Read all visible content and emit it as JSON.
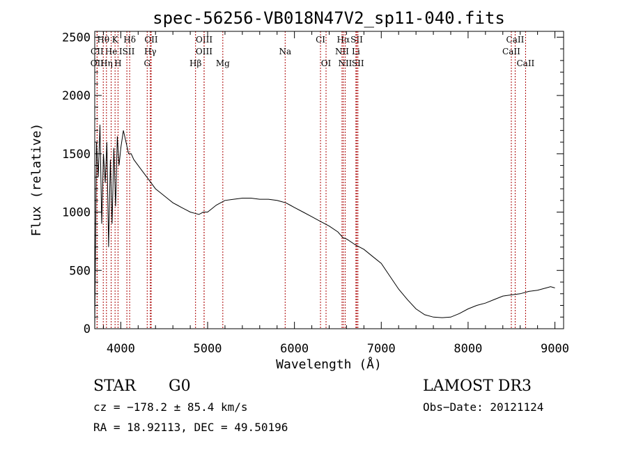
{
  "chart_data": {
    "type": "line",
    "title": "spec-56256-VB018N47V2_sp11-040.fits",
    "xlabel": "Wavelength (Å)",
    "ylabel": "Flux (relative)",
    "xlim": [
      3700,
      9100
    ],
    "ylim": [
      0,
      2550
    ],
    "xticks": [
      4000,
      5000,
      6000,
      7000,
      8000,
      9000
    ],
    "xtick_labels": [
      "4000",
      "5000",
      "6000",
      "7000",
      "8000",
      "9000"
    ],
    "yticks": [
      0,
      500,
      1000,
      1500,
      2000,
      2500
    ],
    "ytick_labels": [
      "0",
      "500",
      "1000",
      "1500",
      "2000",
      "2500"
    ],
    "line_color": "#000000",
    "marker_color": "#aa0000",
    "series": [
      {
        "name": "flux",
        "x": [
          3700,
          3720,
          3740,
          3760,
          3780,
          3800,
          3820,
          3840,
          3860,
          3880,
          3900,
          3920,
          3940,
          3960,
          3980,
          4000,
          4030,
          4060,
          4090,
          4120,
          4150,
          4200,
          4250,
          4300,
          4350,
          4400,
          4450,
          4500,
          4550,
          4600,
          4650,
          4700,
          4750,
          4800,
          4850,
          4900,
          4950,
          5000,
          5050,
          5100,
          5150,
          5200,
          5300,
          5400,
          5500,
          5600,
          5700,
          5800,
          5850,
          5900,
          5950,
          6000,
          6100,
          6200,
          6300,
          6400,
          6500,
          6560,
          6600,
          6700,
          6800,
          6900,
          7000,
          7100,
          7200,
          7300,
          7400,
          7500,
          7600,
          7700,
          7800,
          7900,
          8000,
          8100,
          8200,
          8300,
          8400,
          8500,
          8600,
          8700,
          8800,
          8900,
          8950,
          9000
        ],
        "y": [
          0,
          1600,
          1300,
          1750,
          900,
          1500,
          1250,
          1600,
          700,
          1450,
          900,
          1550,
          1050,
          1650,
          1400,
          1550,
          1700,
          1600,
          1500,
          1500,
          1450,
          1400,
          1350,
          1300,
          1250,
          1200,
          1170,
          1140,
          1110,
          1080,
          1060,
          1040,
          1020,
          1000,
          990,
          980,
          1000,
          1000,
          1030,
          1060,
          1080,
          1100,
          1110,
          1120,
          1120,
          1110,
          1110,
          1100,
          1090,
          1080,
          1060,
          1040,
          1000,
          960,
          920,
          880,
          830,
          780,
          770,
          720,
          680,
          620,
          560,
          450,
          340,
          250,
          170,
          120,
          100,
          95,
          100,
          130,
          170,
          200,
          220,
          250,
          280,
          290,
          300,
          320,
          330,
          350,
          360,
          350
        ]
      }
    ],
    "line_markers": [
      {
        "label": "Hθ",
        "x": 3798,
        "row": 1
      },
      {
        "label": "K",
        "x": 3934,
        "row": 1
      },
      {
        "label": "Hδ",
        "x": 4102,
        "row": 1
      },
      {
        "label": "OII",
        "x": 4350,
        "row": 1
      },
      {
        "label": "OIII",
        "x": 4960,
        "row": 1
      },
      {
        "label": "CI",
        "x": 6300,
        "row": 1
      },
      {
        "label": "Hα",
        "x": 6563,
        "row": 1
      },
      {
        "label": "SII",
        "x": 6717,
        "row": 1
      },
      {
        "label": "CaII",
        "x": 8542,
        "row": 1
      },
      {
        "label": "CII",
        "x": 3727,
        "row": 2
      },
      {
        "label": "He",
        "x": 3889,
        "row": 2
      },
      {
        "label": "ISII",
        "x": 4070,
        "row": 2
      },
      {
        "label": "Hγ",
        "x": 4340,
        "row": 2
      },
      {
        "label": "OIII",
        "x": 4959,
        "row": 2
      },
      {
        "label": "Na",
        "x": 5893,
        "row": 2
      },
      {
        "label": "NII",
        "x": 6548,
        "row": 2
      },
      {
        "label": "Li",
        "x": 6708,
        "row": 2
      },
      {
        "label": "CaII",
        "x": 8498,
        "row": 2
      },
      {
        "label": "OII",
        "x": 3727,
        "row": 3
      },
      {
        "label": "Hη",
        "x": 3835,
        "row": 3
      },
      {
        "label": "H",
        "x": 3968,
        "row": 3
      },
      {
        "label": "G",
        "x": 4304,
        "row": 3
      },
      {
        "label": "Hβ",
        "x": 4861,
        "row": 3
      },
      {
        "label": "Mg",
        "x": 5175,
        "row": 3
      },
      {
        "label": "OI",
        "x": 6364,
        "row": 3
      },
      {
        "label": "NII",
        "x": 6584,
        "row": 3
      },
      {
        "label": "SII",
        "x": 6731,
        "row": 3
      },
      {
        "label": "CaII",
        "x": 8662,
        "row": 3
      }
    ]
  },
  "info": {
    "class": "STAR",
    "subclass": "G0",
    "survey": "LAMOST DR3",
    "cz": "cz = −178.2 ± 85.4 km/s",
    "obs_date": "Obs−Date: 20121124",
    "radec": "RA =  18.92113, DEC =  49.50196"
  }
}
